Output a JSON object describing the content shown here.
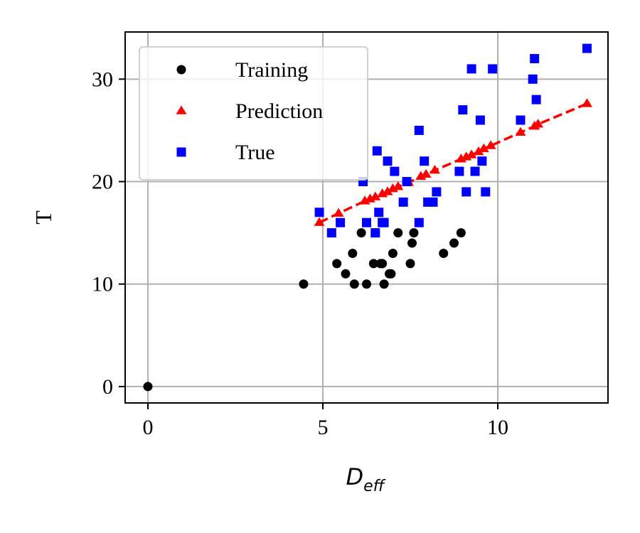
{
  "chart_data": {
    "type": "scatter",
    "title": "",
    "xlabel": "D",
    "xlabel_subscript": "eff",
    "ylabel": "T",
    "xlim": [
      -0.65,
      13.15
    ],
    "ylim": [
      -1.6,
      34.6
    ],
    "xticks": [
      0,
      5,
      10
    ],
    "yticks": [
      0,
      10,
      20,
      30
    ],
    "grid": true,
    "legend": {
      "placement": "top-left"
    },
    "series": [
      {
        "name": "Training",
        "marker": "circle",
        "color": "#000000",
        "x": [
          0,
          4.45,
          5.4,
          5.65,
          5.85,
          5.9,
          6.1,
          6.25,
          6.45,
          6.5,
          6.65,
          6.7,
          6.75,
          6.9,
          6.95,
          7.0,
          7.15,
          7.5,
          7.55,
          7.6,
          8.45,
          8.75,
          8.95
        ],
        "y": [
          0,
          10,
          12,
          11,
          13,
          10,
          15,
          10,
          12,
          15,
          12,
          12,
          10,
          11,
          11,
          13,
          15,
          12,
          14,
          15,
          13,
          14,
          15
        ]
      },
      {
        "name": "Prediction",
        "marker": "triangle",
        "color": "#ff0000",
        "line": "dashed",
        "x": [
          4.9,
          5.45,
          6.2,
          6.35,
          6.5,
          6.7,
          6.85,
          7.0,
          7.15,
          7.45,
          7.8,
          7.95,
          8.2,
          8.95,
          9.1,
          9.25,
          9.45,
          9.6,
          9.8,
          10.65,
          11.05,
          11.15,
          12.55
        ],
        "y": [
          16.0,
          16.9,
          18.1,
          18.3,
          18.5,
          18.8,
          19.0,
          19.3,
          19.5,
          19.9,
          20.5,
          20.7,
          21.1,
          22.2,
          22.4,
          22.6,
          22.9,
          23.2,
          23.5,
          24.8,
          25.4,
          25.6,
          27.6
        ]
      },
      {
        "name": "True",
        "marker": "square",
        "color": "#0000ff",
        "x": [
          4.9,
          5.25,
          5.5,
          6.15,
          6.25,
          6.5,
          6.55,
          6.6,
          6.7,
          6.75,
          6.85,
          7.05,
          7.3,
          7.4,
          7.75,
          7.75,
          7.9,
          8.0,
          8.15,
          8.25,
          8.9,
          9.0,
          9.1,
          9.25,
          9.35,
          9.5,
          9.55,
          9.65,
          9.85,
          10.65,
          11.0,
          11.05,
          11.1,
          12.55
        ],
        "y": [
          17,
          15,
          16,
          20,
          16,
          15,
          23,
          17,
          16,
          16,
          22,
          21,
          18,
          20,
          25,
          16,
          22,
          18,
          18,
          19,
          21,
          27,
          19,
          31,
          21,
          26,
          22,
          19,
          31,
          26,
          30,
          32,
          28,
          33
        ]
      }
    ]
  }
}
